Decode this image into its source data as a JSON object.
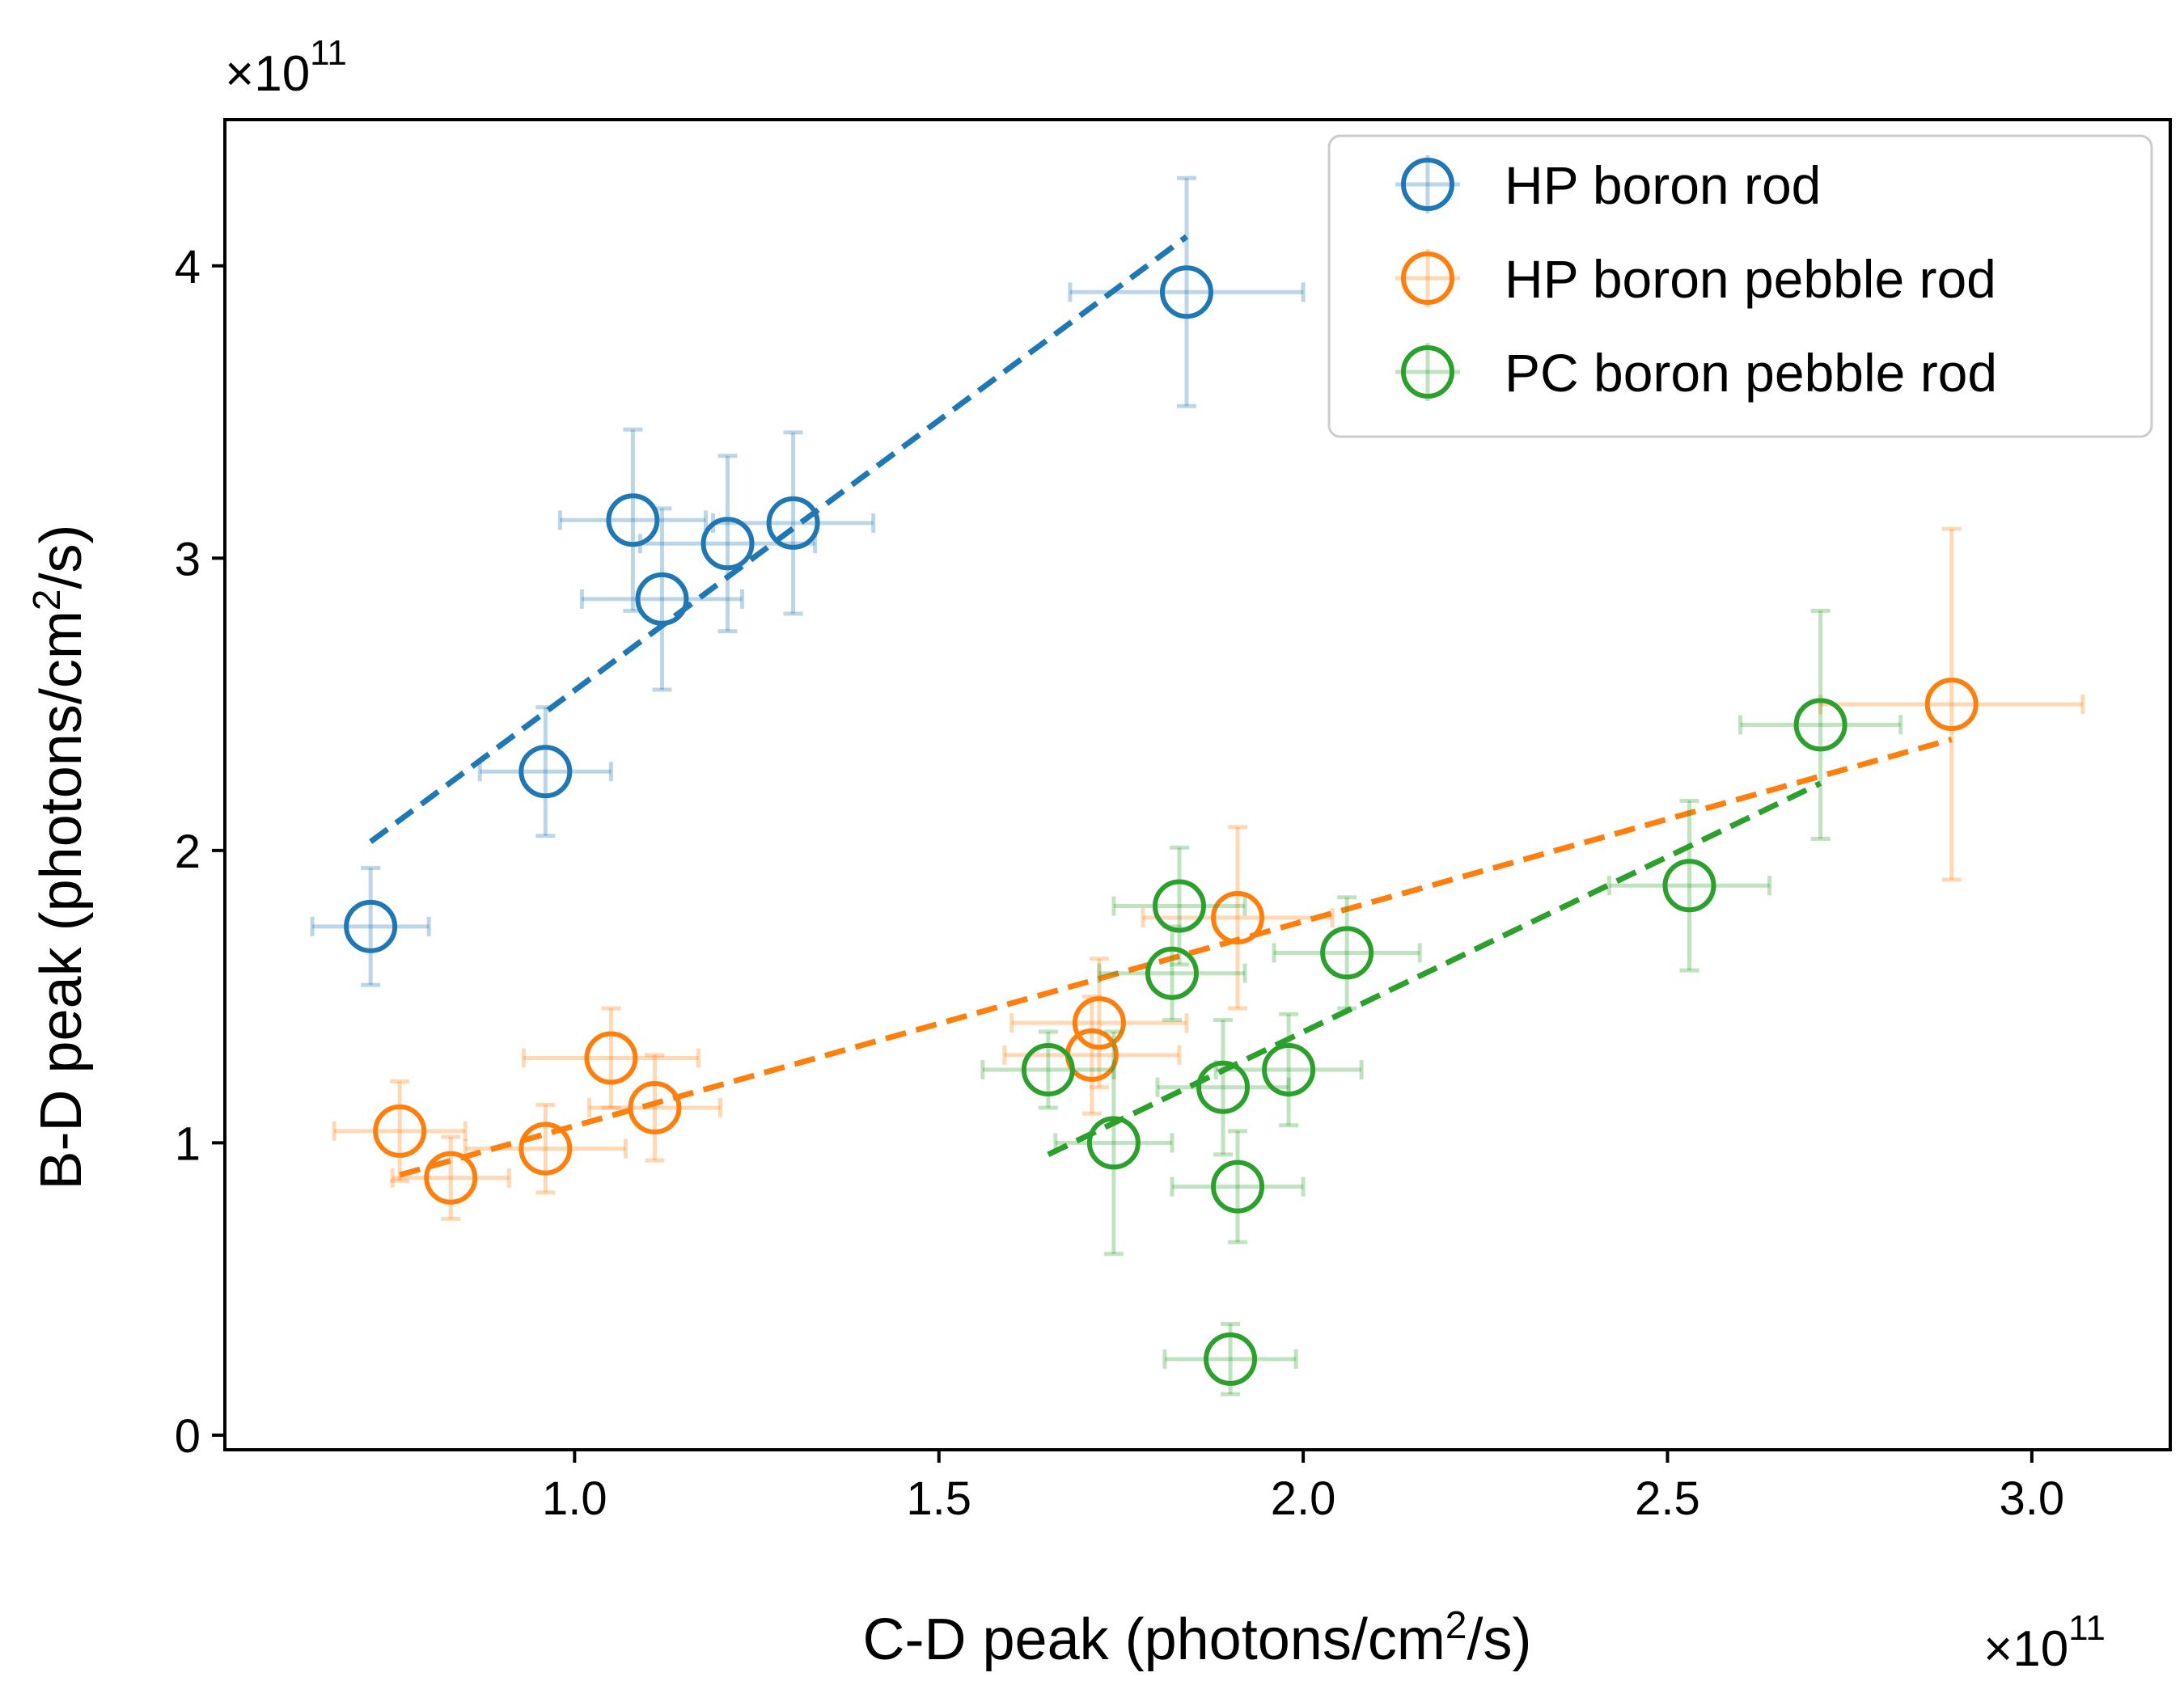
{
  "chart_data": {
    "type": "scatter",
    "xlabel": "C-D peak (photons/cm²/s)",
    "ylabel": "B-D peak (photons/cm²/s)",
    "x_multiplier": {
      "base": "×10",
      "exp": "11"
    },
    "y_multiplier": {
      "base": "×10",
      "exp": "11"
    },
    "xlim": [
      0.52,
      3.19
    ],
    "ylim": [
      -0.05,
      4.5
    ],
    "x_ticks": [
      1.0,
      1.5,
      2.0,
      2.5,
      3.0
    ],
    "x_tick_labels": [
      "1.0",
      "1.5",
      "2.0",
      "2.5",
      "3.0"
    ],
    "y_ticks": [
      0,
      1,
      2,
      3,
      4
    ],
    "y_tick_labels": [
      "0",
      "1",
      "2",
      "3",
      "4"
    ],
    "grid": false,
    "legend_position": "top-right",
    "series": [
      {
        "name": "HP boron rod",
        "color": "#1f77b4",
        "points": [
          {
            "x": 0.72,
            "y": 1.74,
            "xerr": 0.08,
            "yerr": 0.2
          },
          {
            "x": 0.96,
            "y": 2.27,
            "xerr": 0.09,
            "yerr": 0.22
          },
          {
            "x": 1.08,
            "y": 3.13,
            "xerr": 0.1,
            "yerr": 0.31
          },
          {
            "x": 1.12,
            "y": 2.86,
            "xerr": 0.11,
            "yerr": 0.31
          },
          {
            "x": 1.21,
            "y": 3.05,
            "xerr": 0.12,
            "yerr": 0.3
          },
          {
            "x": 1.3,
            "y": 3.12,
            "xerr": 0.11,
            "yerr": 0.31
          },
          {
            "x": 1.84,
            "y": 3.91,
            "xerr": 0.16,
            "yerr": 0.39
          }
        ],
        "fit": {
          "x": [
            0.72,
            1.84
          ],
          "y": [
            2.03,
            4.1
          ]
        }
      },
      {
        "name": "HP boron pebble rod",
        "color": "#ff7f0e",
        "points": [
          {
            "x": 0.76,
            "y": 1.04,
            "xerr": 0.09,
            "yerr": 0.17
          },
          {
            "x": 0.83,
            "y": 0.88,
            "xerr": 0.08,
            "yerr": 0.14
          },
          {
            "x": 0.96,
            "y": 0.98,
            "xerr": 0.11,
            "yerr": 0.15
          },
          {
            "x": 1.05,
            "y": 1.29,
            "xerr": 0.12,
            "yerr": 0.17
          },
          {
            "x": 1.11,
            "y": 1.12,
            "xerr": 0.09,
            "yerr": 0.18
          },
          {
            "x": 1.71,
            "y": 1.3,
            "xerr": 0.12,
            "yerr": 0.2
          },
          {
            "x": 1.72,
            "y": 1.41,
            "xerr": 0.12,
            "yerr": 0.22
          },
          {
            "x": 1.91,
            "y": 1.77,
            "xerr": 0.13,
            "yerr": 0.31
          },
          {
            "x": 2.89,
            "y": 2.5,
            "xerr": 0.18,
            "yerr": 0.6
          }
        ],
        "fit": {
          "x": [
            0.76,
            2.89
          ],
          "y": [
            0.89,
            2.38
          ]
        }
      },
      {
        "name": "PC boron pebble rod",
        "color": "#2ca02c",
        "points": [
          {
            "x": 1.65,
            "y": 1.25,
            "xerr": 0.09,
            "yerr": 0.13
          },
          {
            "x": 1.74,
            "y": 1.0,
            "xerr": 0.08,
            "yerr": 0.38
          },
          {
            "x": 1.82,
            "y": 1.58,
            "xerr": 0.1,
            "yerr": 0.16
          },
          {
            "x": 1.83,
            "y": 1.81,
            "xerr": 0.09,
            "yerr": 0.2
          },
          {
            "x": 1.89,
            "y": 1.19,
            "xerr": 0.09,
            "yerr": 0.23
          },
          {
            "x": 1.9,
            "y": 0.26,
            "xerr": 0.09,
            "yerr": 0.12
          },
          {
            "x": 1.91,
            "y": 0.85,
            "xerr": 0.09,
            "yerr": 0.19
          },
          {
            "x": 1.98,
            "y": 1.25,
            "xerr": 0.1,
            "yerr": 0.19
          },
          {
            "x": 2.06,
            "y": 1.65,
            "xerr": 0.1,
            "yerr": 0.19
          },
          {
            "x": 2.53,
            "y": 1.88,
            "xerr": 0.11,
            "yerr": 0.29
          },
          {
            "x": 2.71,
            "y": 2.43,
            "xerr": 0.11,
            "yerr": 0.39
          }
        ],
        "fit": {
          "x": [
            1.65,
            2.71
          ],
          "y": [
            0.96,
            2.23
          ]
        }
      }
    ]
  }
}
